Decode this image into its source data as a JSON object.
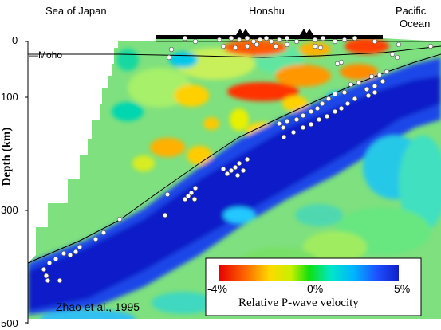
{
  "regions": {
    "left": "Sea of Japan",
    "center": "Honshu",
    "right_line1": "Pacific",
    "right_line2": "Ocean"
  },
  "axis": {
    "label": "Depth (km)",
    "ticks": [
      "0",
      "100",
      "300",
      "500"
    ]
  },
  "moho_label": "Moho",
  "credit": "Zhao et al., 1995",
  "colorbar": {
    "min_label": "-4%",
    "mid_label": "0%",
    "max_label": "5%",
    "title": "Relative P-wave velocity",
    "colors": [
      "#ff0000",
      "#ff7f00",
      "#ffff00",
      "#00ff00",
      "#00ffff",
      "#0000ff"
    ]
  }
}
